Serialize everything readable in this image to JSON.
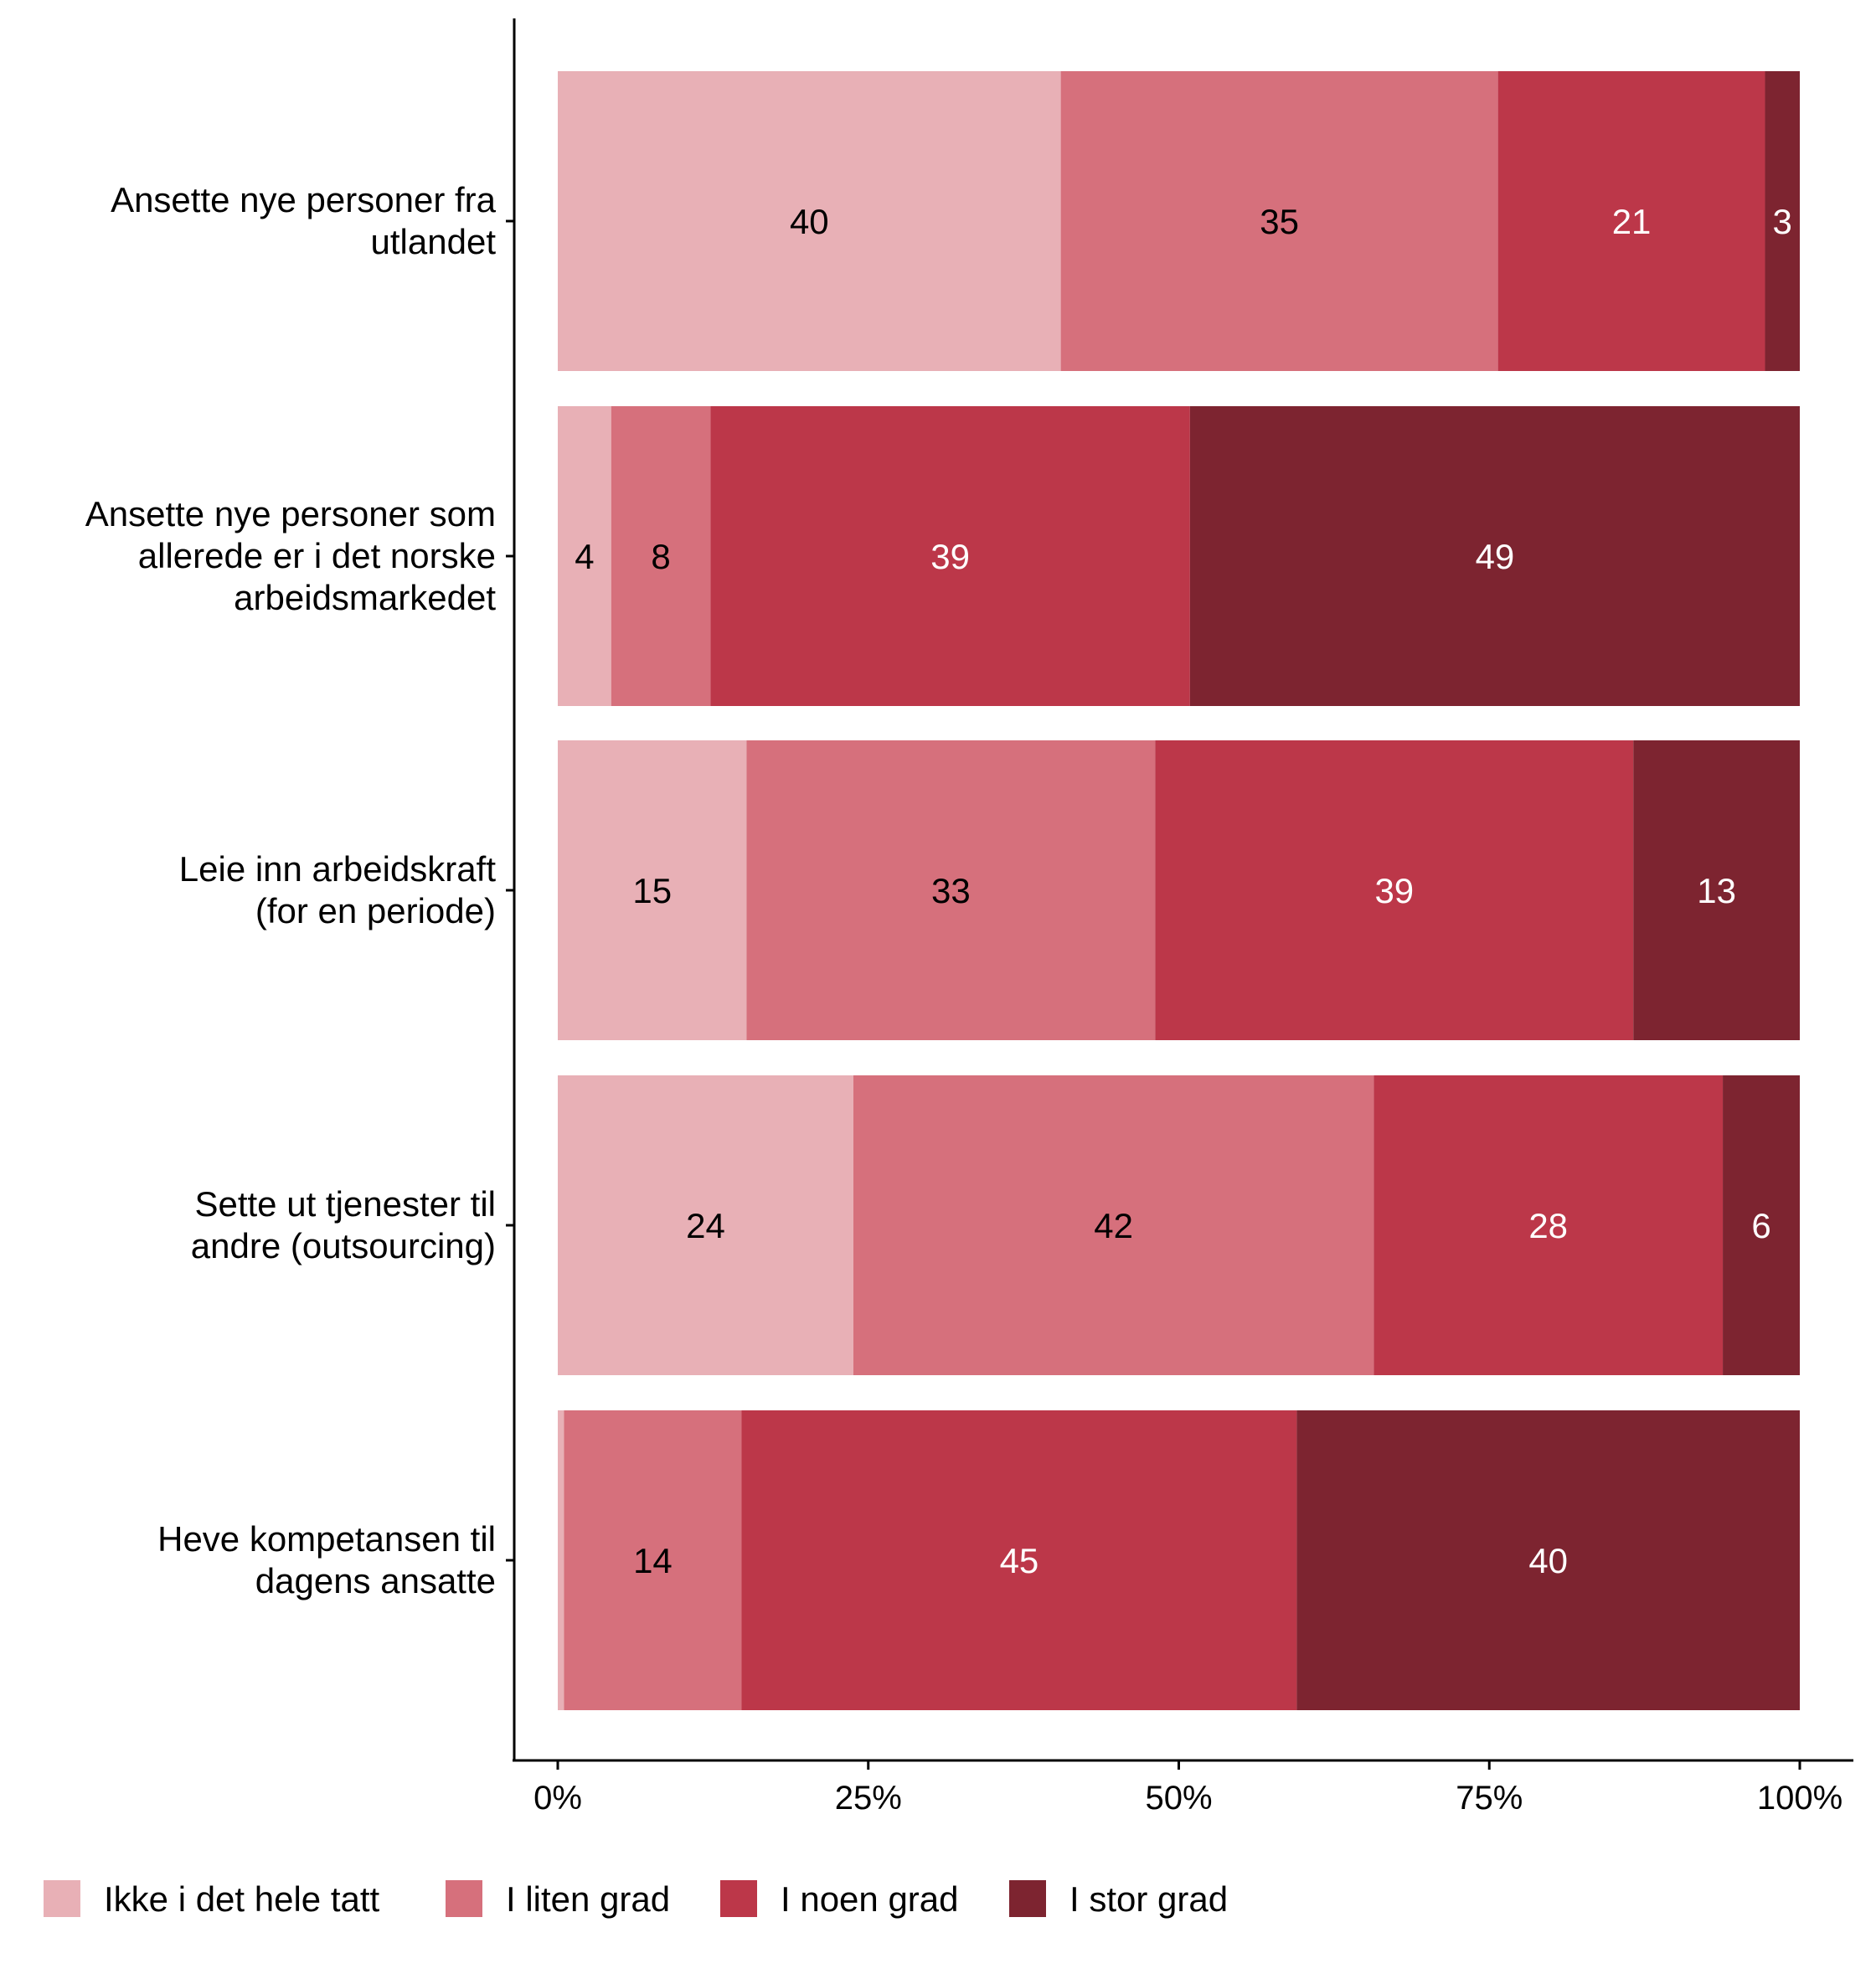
{
  "chart_data": {
    "type": "bar",
    "orientation": "horizontal",
    "stacked": true,
    "percent": true,
    "categories": [
      [
        "Ansette nye personer fra",
        "utlandet"
      ],
      [
        "Ansette nye personer som",
        "allerede er i det norske",
        "arbeidsmarkedet"
      ],
      [
        "Leie inn arbeidskraft",
        "(for en periode)"
      ],
      [
        "Sette ut tjenester til",
        "andre (outsourcing)"
      ],
      [
        "Heve kompetansen til",
        "dagens ansatte"
      ]
    ],
    "series": [
      {
        "name": "Ikke i det hele tatt",
        "color": "#E8B0B6",
        "label_color": "#000000",
        "values": [
          40.5,
          4.3,
          15.2,
          23.8,
          0.5
        ],
        "labels": [
          "40",
          "4",
          "15",
          "24",
          ""
        ]
      },
      {
        "name": "I liten grad",
        "color": "#D6707C",
        "label_color": "#000000",
        "values": [
          35.2,
          8.0,
          32.9,
          41.9,
          14.3
        ],
        "labels": [
          "35",
          "8",
          "33",
          "42",
          "14"
        ]
      },
      {
        "name": "I noen grad",
        "color": "#BC3749",
        "label_color": "#FFFFFF",
        "values": [
          21.5,
          38.6,
          38.5,
          28.1,
          44.7
        ],
        "labels": [
          "21",
          "39",
          "39",
          "28",
          "45"
        ]
      },
      {
        "name": "I stor grad",
        "color": "#7D2430",
        "label_color": "#FFFFFF",
        "values": [
          2.8,
          49.1,
          13.4,
          6.2,
          40.5
        ],
        "labels": [
          "3",
          "49",
          "13",
          "6",
          "40"
        ]
      }
    ],
    "xlim": [
      0,
      100
    ],
    "xticks": [
      "0%",
      "25%",
      "50%",
      "75%",
      "100%"
    ],
    "xlabel": "",
    "ylabel": "",
    "grid": false,
    "legend_position": "bottom"
  }
}
